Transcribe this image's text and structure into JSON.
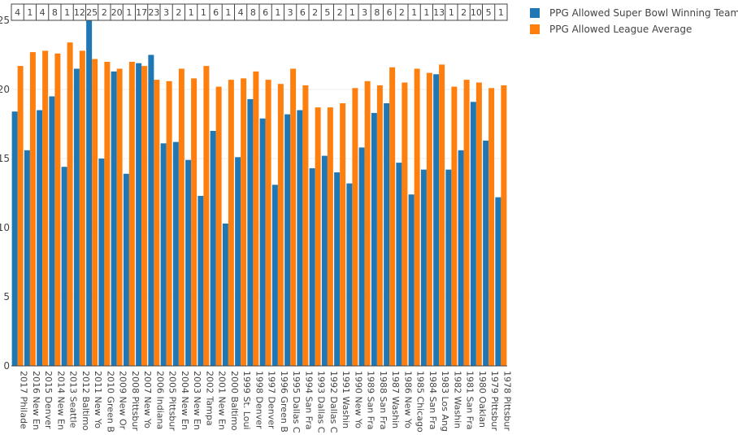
{
  "chart_data": {
    "type": "bar",
    "categories": [
      "2017 Philade",
      "2016 New En",
      "2015 Denver",
      "2014 New En",
      "2013 Seattle",
      "2012 Baltimo",
      "2011 New Yo",
      "2010 Green B",
      "2009 New Or",
      "2008 Pittsbur",
      "2007 New Yo",
      "2006 Indiana",
      "2005 Pittsbur",
      "2004 New En",
      "2003 New En",
      "2002 Tampa",
      "2001 New En",
      "2000 Baltimo",
      "1999 St. Loui",
      "1998 Denver",
      "1997 Denver",
      "1996 Green B",
      "1995 Dallas C",
      "1994 San Fra",
      "1993 Dallas C",
      "1992 Dallas C",
      "1991 Washin",
      "1990 New Yo",
      "1989 San Fra",
      "1988 San Fra",
      "1987 Washin",
      "1986 New Yo",
      "1985 Chicago",
      "1984 San Fra",
      "1983 Los Ang",
      "1982 Washin",
      "1981 San Fra",
      "1980 Oaklan",
      "1979 Pittsbur",
      "1978 Pittsbur"
    ],
    "series": [
      {
        "name": "PPG Allowed Super Bowl Winning Team",
        "color": "#1f77b4",
        "values": [
          18.4,
          15.6,
          18.5,
          19.5,
          14.4,
          21.5,
          25.0,
          15.0,
          21.3,
          13.9,
          21.9,
          22.5,
          16.1,
          16.2,
          14.9,
          12.3,
          17.0,
          10.3,
          15.1,
          19.3,
          17.9,
          13.1,
          18.2,
          18.5,
          14.3,
          15.2,
          14.0,
          13.2,
          15.8,
          18.3,
          19.0,
          14.7,
          12.4,
          14.2,
          21.1,
          14.2,
          15.6,
          19.1,
          16.3,
          12.2
        ]
      },
      {
        "name": "PPG Allowed League Average",
        "color": "#ff7f0e",
        "values": [
          21.7,
          22.7,
          22.8,
          22.6,
          23.4,
          22.8,
          22.2,
          22.0,
          21.5,
          22.0,
          21.7,
          20.7,
          20.6,
          21.5,
          20.8,
          21.7,
          20.2,
          20.7,
          20.8,
          21.3,
          20.7,
          20.4,
          21.5,
          20.3,
          18.7,
          18.7,
          19.0,
          20.1,
          20.6,
          20.3,
          21.6,
          20.5,
          21.5,
          21.2,
          21.8,
          20.2,
          20.7,
          20.5,
          20.1,
          20.3
        ]
      }
    ],
    "ranks": [
      "4",
      "1",
      "4",
      "8",
      "1",
      "12",
      "25",
      "2",
      "20",
      "1",
      "17",
      "23",
      "3",
      "2",
      "1",
      "1",
      "6",
      "1",
      "4",
      "8",
      "6",
      "1",
      "3",
      "6",
      "2",
      "5",
      "2",
      "1",
      "3",
      "8",
      "6",
      "2",
      "1",
      "1",
      "13",
      "1",
      "2",
      "10",
      "5",
      "1"
    ],
    "y_ticks": [
      "0",
      "5",
      "10",
      "15",
      "20",
      "25"
    ],
    "ylim": [
      0,
      25
    ],
    "grid": true,
    "legend_position": "top-right"
  }
}
